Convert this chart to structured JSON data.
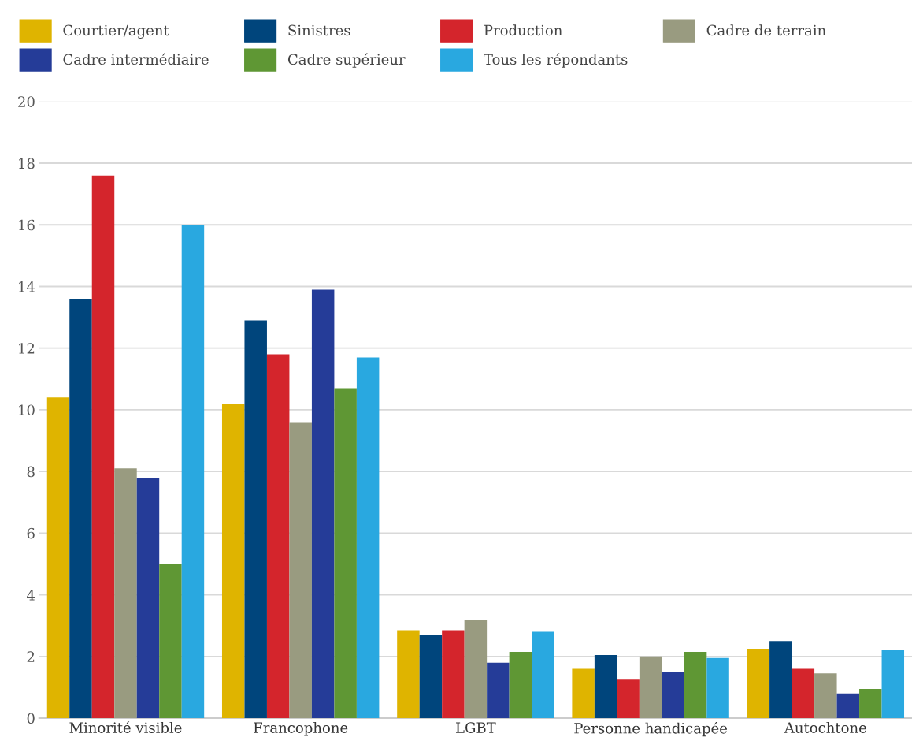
{
  "chart_data": {
    "type": "bar",
    "categories": [
      "Minorité visible",
      "Francophone",
      "LGBT",
      "Personne handicapée",
      "Autochtone"
    ],
    "series": [
      {
        "name": "Courtier/agent",
        "color": "#dfb400",
        "values": [
          10.4,
          10.2,
          2.85,
          1.6,
          2.25
        ]
      },
      {
        "name": "Sinistres",
        "color": "#00457c",
        "values": [
          13.6,
          12.9,
          2.7,
          2.05,
          2.5
        ]
      },
      {
        "name": "Production",
        "color": "#d4252c",
        "values": [
          17.6,
          11.8,
          2.85,
          1.25,
          1.6
        ]
      },
      {
        "name": "Cadre de terrain",
        "color": "#999b80",
        "values": [
          8.1,
          9.6,
          3.2,
          2.0,
          1.45
        ]
      },
      {
        "name": "Cadre intermédiaire",
        "color": "#253c98",
        "values": [
          7.8,
          13.9,
          1.8,
          1.5,
          0.8
        ]
      },
      {
        "name": "Cadre supérieur",
        "color": "#5f9734",
        "values": [
          5.0,
          10.7,
          2.15,
          2.15,
          0.95
        ]
      },
      {
        "name": "Tous les répondants",
        "color": "#29a8e0",
        "values": [
          16.0,
          11.7,
          2.8,
          1.95,
          2.2
        ]
      }
    ],
    "ylim": [
      0,
      20
    ],
    "yticks": [
      0,
      2,
      4,
      6,
      8,
      10,
      12,
      14,
      16,
      18,
      20
    ],
    "grid": "y",
    "legend": "top"
  }
}
